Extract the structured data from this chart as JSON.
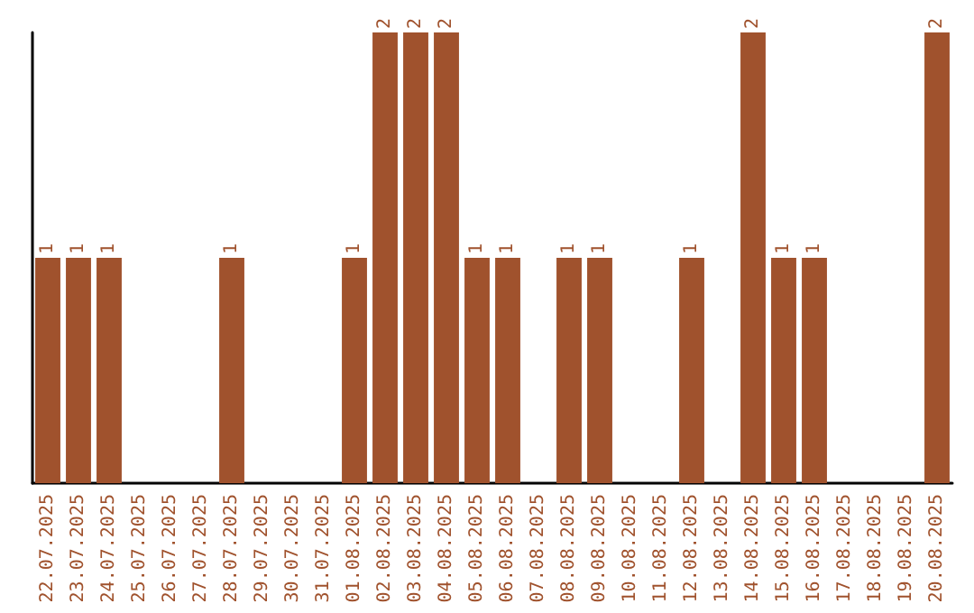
{
  "chart_data": {
    "type": "bar",
    "categories": [
      "22.07.2025",
      "23.07.2025",
      "24.07.2025",
      "25.07.2025",
      "26.07.2025",
      "27.07.2025",
      "28.07.2025",
      "29.07.2025",
      "30.07.2025",
      "31.07.2025",
      "01.08.2025",
      "02.08.2025",
      "03.08.2025",
      "04.08.2025",
      "05.08.2025",
      "06.08.2025",
      "07.08.2025",
      "08.08.2025",
      "09.08.2025",
      "10.08.2025",
      "11.08.2025",
      "12.08.2025",
      "13.08.2025",
      "14.08.2025",
      "15.08.2025",
      "16.08.2025",
      "17.08.2025",
      "18.08.2025",
      "19.08.2025",
      "20.08.2025"
    ],
    "values": [
      1,
      1,
      1,
      0,
      0,
      0,
      1,
      0,
      0,
      0,
      1,
      2,
      2,
      2,
      1,
      1,
      0,
      1,
      1,
      0,
      0,
      1,
      0,
      2,
      1,
      1,
      0,
      0,
      0,
      2
    ],
    "value_labels": [
      "1",
      "1",
      "1",
      null,
      null,
      null,
      "1",
      null,
      null,
      null,
      "1",
      "2",
      "2",
      "2",
      "1",
      "1",
      null,
      "1",
      "1",
      null,
      null,
      "1",
      null,
      "2",
      "1",
      "1",
      null,
      null,
      null,
      "2"
    ],
    "color": "#a0522d",
    "tick_labels": "x",
    "grid": false
  }
}
